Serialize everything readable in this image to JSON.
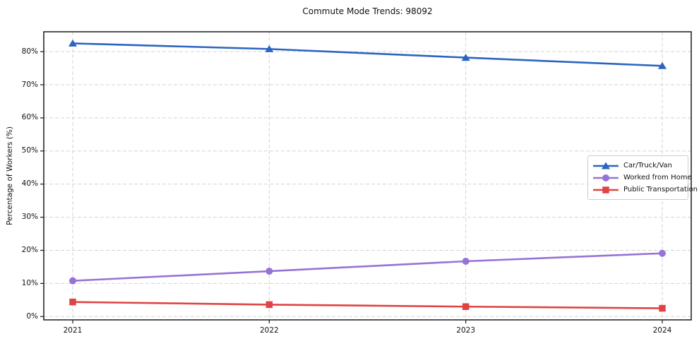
{
  "chart_data": {
    "type": "line",
    "title": "Commute Mode Trends: 98092",
    "xlabel": "",
    "ylabel": "Percentage of Workers (%)",
    "x": [
      "2021",
      "2022",
      "2023",
      "2024"
    ],
    "ylim": [
      -1,
      86
    ],
    "yticks": [
      0,
      10,
      20,
      30,
      40,
      50,
      60,
      70,
      80
    ],
    "ytick_suffix": "%",
    "grid": true,
    "grid_color": "#d3d3d3",
    "spine_color": "#1a1a1a",
    "legend_position": "center right",
    "series": [
      {
        "name": "Car/Truck/Van",
        "color": "#2b65c0",
        "marker": "triangle",
        "values": [
          82.5,
          80.8,
          78.2,
          75.7
        ]
      },
      {
        "name": "Worked from Home",
        "color": "#9673d6",
        "marker": "circle",
        "values": [
          10.8,
          13.7,
          16.7,
          19.1
        ]
      },
      {
        "name": "Public Transportation",
        "color": "#e04343",
        "marker": "square",
        "values": [
          4.4,
          3.6,
          3.0,
          2.5
        ]
      }
    ]
  }
}
